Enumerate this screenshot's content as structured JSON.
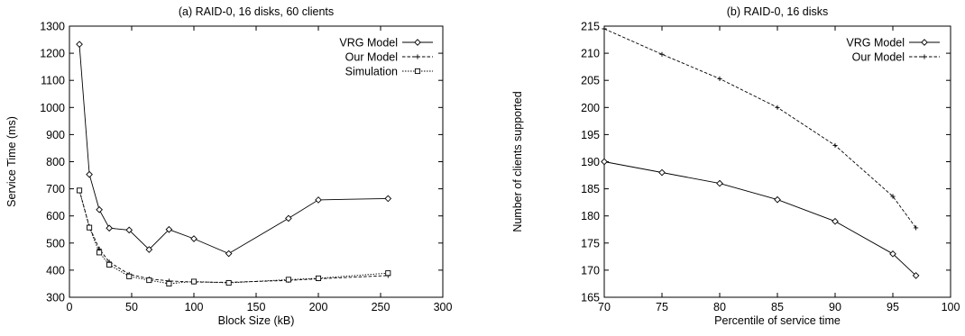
{
  "chart_data": [
    {
      "type": "line",
      "title": "(a) RAID-0, 16 disks, 60 clients",
      "xlabel": "Block Size (kB)",
      "ylabel": "Service Time (ms)",
      "xlim": [
        0,
        300
      ],
      "ylim": [
        300,
        1300
      ],
      "xticks": [
        0,
        50,
        100,
        150,
        200,
        250,
        300
      ],
      "yticks": [
        300,
        400,
        500,
        600,
        700,
        800,
        900,
        1000,
        1100,
        1200,
        1300
      ],
      "grid": false,
      "legend_position": "top-right",
      "series": [
        {
          "name": "VRG Model",
          "style": "solid",
          "marker": "diamond",
          "x": [
            8,
            16,
            24,
            32,
            48,
            64,
            80,
            100,
            128,
            176,
            200,
            256
          ],
          "y": [
            1233,
            753,
            623,
            555,
            548,
            476,
            550,
            516,
            461,
            591,
            659,
            664
          ]
        },
        {
          "name": "Our Model",
          "style": "dashed",
          "marker": "plus",
          "x": [
            8,
            16,
            24,
            32,
            48,
            64,
            80,
            100,
            128,
            176,
            200,
            256
          ],
          "y": [
            695,
            560,
            478,
            430,
            385,
            368,
            360,
            356,
            355,
            362,
            368,
            380
          ]
        },
        {
          "name": "Simulation",
          "style": "dotted",
          "marker": "square",
          "x": [
            8,
            16,
            24,
            32,
            48,
            64,
            80,
            100,
            128,
            176,
            200,
            256
          ],
          "y": [
            694,
            557,
            465,
            420,
            377,
            363,
            350,
            358,
            353,
            365,
            370,
            389
          ]
        }
      ]
    },
    {
      "type": "line",
      "title": "(b) RAID-0, 16 disks",
      "xlabel": "Percentile of service time",
      "ylabel": "Number of clients supported",
      "xlim": [
        70,
        100
      ],
      "ylim": [
        165,
        215
      ],
      "xticks": [
        70,
        75,
        80,
        85,
        90,
        95,
        100
      ],
      "yticks": [
        165,
        170,
        175,
        180,
        185,
        190,
        195,
        200,
        205,
        210,
        215
      ],
      "grid": false,
      "legend_position": "top-right",
      "series": [
        {
          "name": "VRG Model",
          "style": "solid",
          "marker": "diamond",
          "x": [
            70,
            75,
            80,
            85,
            90,
            95,
            97
          ],
          "y": [
            190,
            188,
            186,
            183,
            179,
            173,
            169
          ]
        },
        {
          "name": "Our Model",
          "style": "dashed",
          "marker": "plus",
          "x": [
            70,
            75,
            80,
            85,
            90,
            95,
            97
          ],
          "y": [
            214.5,
            209.8,
            205.3,
            200,
            193,
            183.6,
            177.8
          ]
        }
      ]
    }
  ]
}
